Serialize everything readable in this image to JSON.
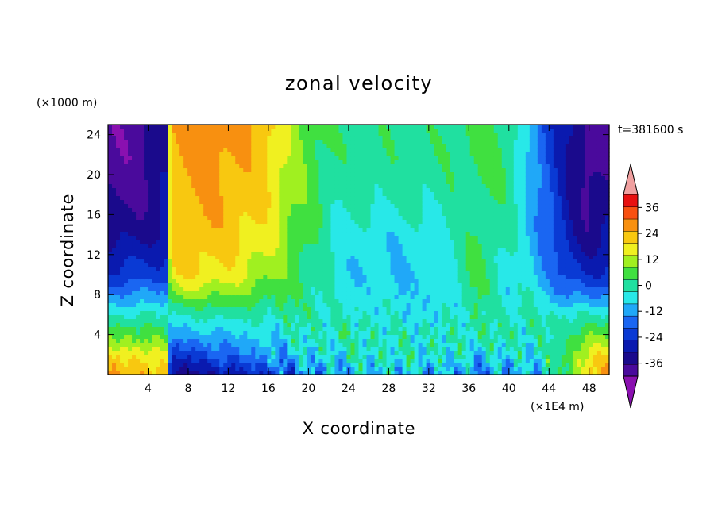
{
  "chart_data": {
    "type": "heatmap",
    "title": "zonal velocity",
    "xlabel": "X coordinate",
    "ylabel": "Z coordinate",
    "x_unit": "(×1E4 m)",
    "y_unit": "(×1000 m)",
    "timestamp": "t=381600 s",
    "xlim": [
      0,
      50
    ],
    "ylim": [
      0,
      25
    ],
    "x_ticks": [
      4,
      8,
      12,
      16,
      20,
      24,
      28,
      32,
      36,
      40,
      44,
      48
    ],
    "y_ticks": [
      4,
      8,
      12,
      16,
      20,
      24
    ],
    "colorbar": {
      "levels": [
        -42,
        -36,
        -30,
        -24,
        -18,
        -12,
        -6,
        0,
        6,
        12,
        18,
        24,
        30,
        36,
        42
      ],
      "labels": [
        -36,
        -24,
        -12,
        0,
        12,
        24,
        36
      ],
      "label_text": [
        "-36",
        "-24",
        "-12",
        "0",
        "12",
        "24",
        "36"
      ],
      "colors": [
        "#4a0a9c",
        "#1a0a8c",
        "#0a1aaf",
        "#0a3ad4",
        "#1a66f2",
        "#20a8f8",
        "#28e8e8",
        "#20e0a0",
        "#40e040",
        "#a0f020",
        "#f0f020",
        "#f8c810",
        "#f89010",
        "#f85010",
        "#e81010"
      ],
      "under_color": "#8a10b0",
      "over_color": "#f0a0a0"
    },
    "field_description_profiles": {
      "x_nodes": [
        0,
        3,
        5.8,
        6.2,
        8,
        10,
        13,
        16,
        19,
        23,
        28,
        33,
        37,
        40,
        42,
        43.5,
        46,
        48,
        50
      ],
      "z_nodes": [
        0,
        2,
        4,
        6,
        8,
        10,
        14,
        18,
        22,
        25
      ],
      "values": [
        [
          30,
          22,
          10,
          0,
          -12,
          -22,
          -32,
          -38,
          -40,
          -40
        ],
        [
          30,
          22,
          10,
          0,
          -12,
          -22,
          -32,
          -38,
          -40,
          -40
        ],
        [
          26,
          18,
          8,
          0,
          -10,
          -20,
          -28,
          -30,
          -30,
          -30
        ],
        [
          -30,
          -20,
          -10,
          0,
          12,
          22,
          26,
          28,
          30,
          32
        ],
        [
          -34,
          -22,
          -8,
          0,
          14,
          24,
          28,
          30,
          32,
          33
        ],
        [
          -30,
          -18,
          -8,
          2,
          14,
          24,
          28,
          31,
          34,
          36
        ],
        [
          -26,
          -14,
          -6,
          2,
          12,
          20,
          26,
          28,
          30,
          32
        ],
        [
          -22,
          -10,
          -4,
          2,
          8,
          14,
          20,
          24,
          26,
          27
        ],
        [
          -14,
          -6,
          0,
          4,
          6,
          8,
          10,
          12,
          12,
          12
        ],
        [
          -8,
          -2,
          2,
          0,
          -2,
          -4,
          -2,
          2,
          4,
          4
        ],
        [
          -6,
          0,
          0,
          -2,
          -4,
          -6,
          -4,
          2,
          4,
          4
        ],
        [
          -8,
          -2,
          0,
          -4,
          -6,
          -4,
          -2,
          2,
          4,
          4
        ],
        [
          -12,
          -4,
          2,
          4,
          6,
          8,
          6,
          6,
          8,
          8
        ],
        [
          -10,
          -4,
          2,
          0,
          -2,
          -2,
          0,
          4,
          6,
          6
        ],
        [
          -6,
          -2,
          0,
          2,
          0,
          -4,
          -6,
          -6,
          -8,
          -8
        ],
        [
          -4,
          -2,
          0,
          0,
          -6,
          -10,
          -14,
          -16,
          -18,
          -18
        ],
        [
          10,
          10,
          6,
          0,
          -14,
          -22,
          -28,
          -30,
          -30,
          -30
        ],
        [
          26,
          20,
          10,
          0,
          -14,
          -24,
          -34,
          -38,
          -40,
          -40
        ],
        [
          32,
          24,
          12,
          0,
          -12,
          -22,
          -30,
          -34,
          -36,
          -36
        ]
      ]
    }
  }
}
